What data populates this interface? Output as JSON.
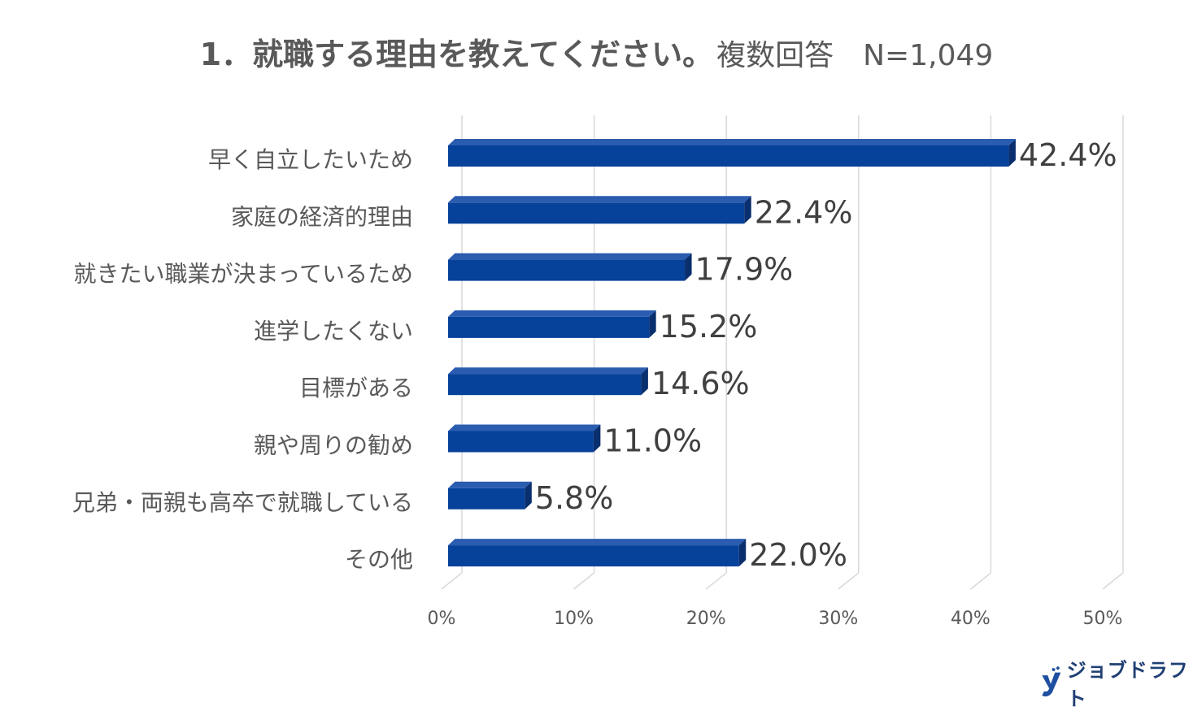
{
  "title": {
    "main": "1．就職する理由を教えてください。",
    "sub": "複数回答　N=1,049"
  },
  "chart_data": {
    "type": "bar",
    "orientation": "horizontal",
    "categories": [
      "早く自立したいため",
      "家庭の経済的理由",
      "就きたい職業が決まっているため",
      "進学したくない",
      "目標がある",
      "親や周りの勧め",
      "兄弟・両親も高卒で就職している",
      "その他"
    ],
    "values": [
      42.4,
      22.4,
      17.9,
      15.2,
      14.6,
      11.0,
      5.8,
      22.0
    ],
    "value_labels": [
      "42.4%",
      "22.4%",
      "17.9%",
      "15.2%",
      "14.6%",
      "11.0%",
      "5.8%",
      "22.0%"
    ],
    "xlim": [
      0,
      50
    ],
    "xticks": [
      0,
      10,
      20,
      30,
      40,
      50
    ],
    "xtick_labels": [
      "0%",
      "10%",
      "20%",
      "30%",
      "40%",
      "50%"
    ],
    "grid": true,
    "style": "3d",
    "bar_color": "#06419a"
  },
  "logo": {
    "text": "ジョブドラフト"
  }
}
